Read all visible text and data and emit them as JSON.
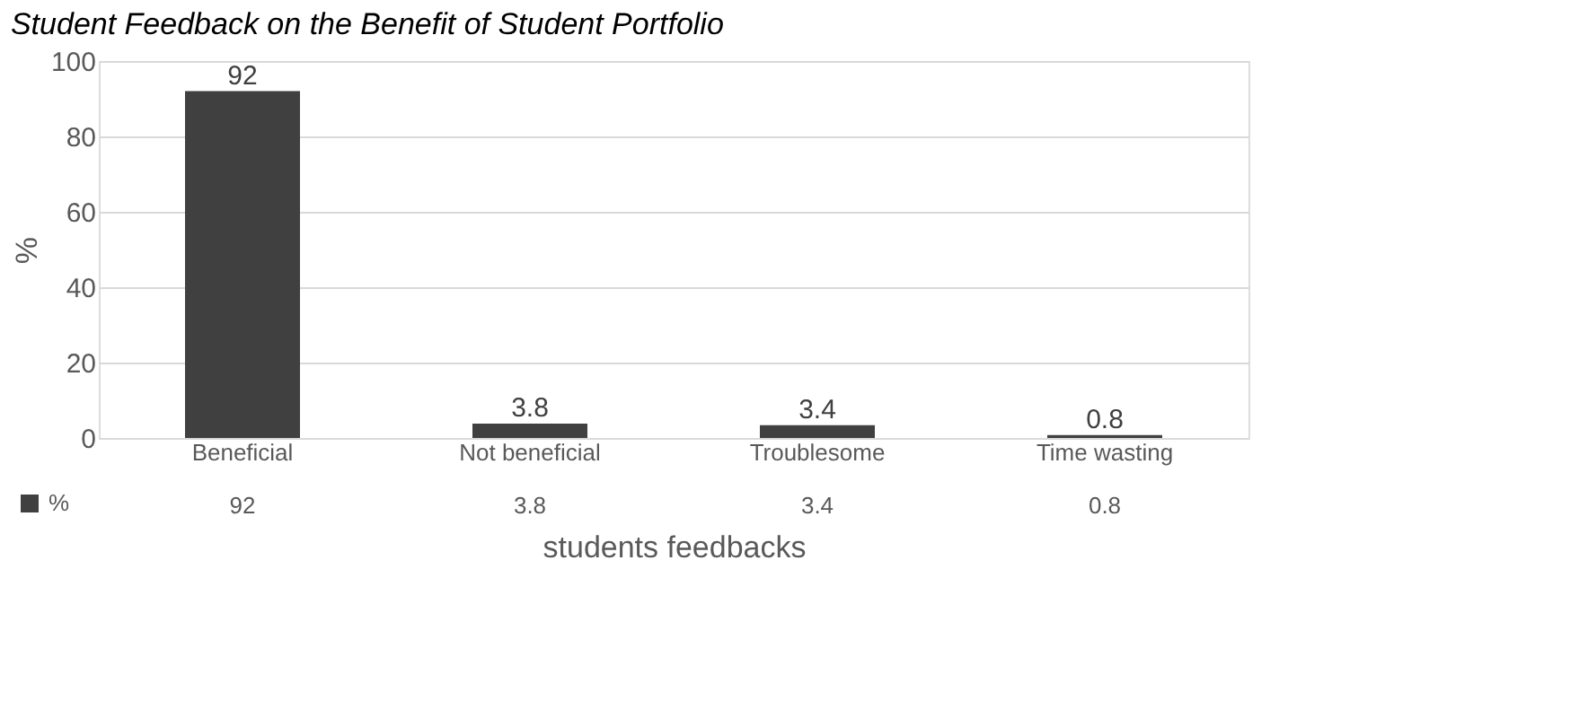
{
  "chart_data": {
    "type": "bar",
    "title": "Student Feedback on the Benefit of Student Portfolio",
    "xlabel": "students feedbacks",
    "ylabel": "%",
    "categories": [
      "Beneficial",
      "Not beneficial",
      "Troublesome",
      "Time wasting"
    ],
    "series": [
      {
        "name": "%",
        "color": "#404040",
        "values": [
          92,
          3.8,
          3.4,
          0.8
        ]
      }
    ],
    "annotations": [
      "92",
      "3.8",
      "3.4",
      "0.8"
    ],
    "ylim": [
      0,
      100
    ],
    "yticks": [
      0,
      20,
      40,
      60,
      80,
      100
    ],
    "grid": "y",
    "data_labels": true,
    "legend": "bottom left"
  }
}
